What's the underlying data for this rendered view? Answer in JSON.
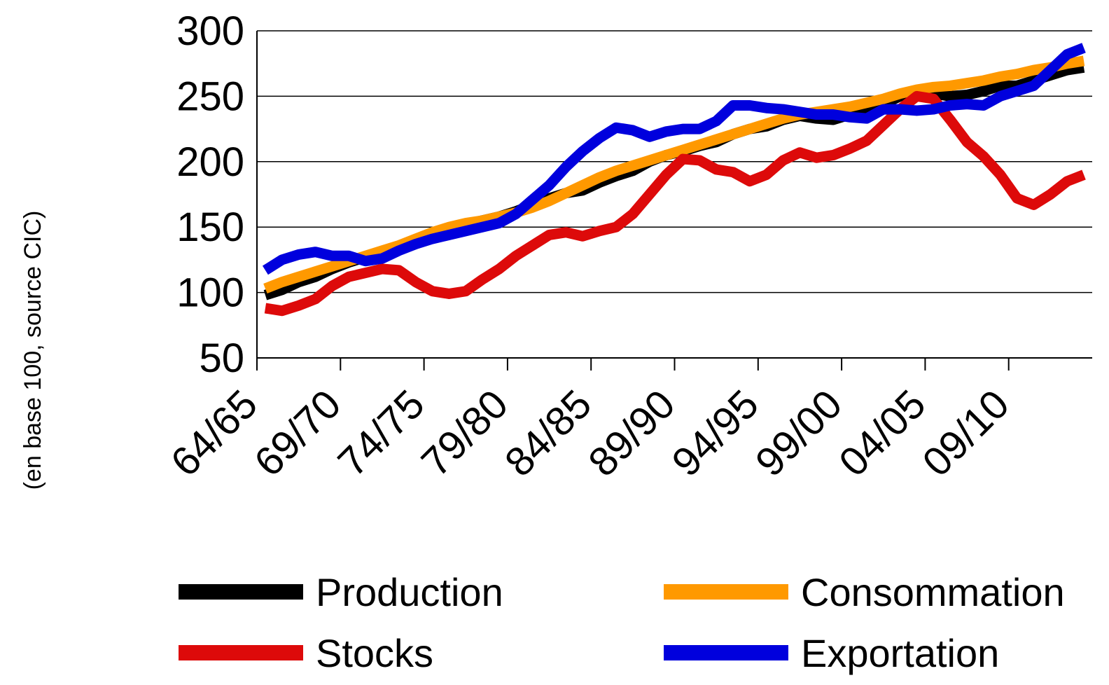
{
  "chart_data": {
    "type": "line",
    "y_label": "(en base 100, source CIC)",
    "categories": [
      "64/65",
      null,
      null,
      null,
      null,
      "69/70",
      null,
      null,
      null,
      null,
      "74/75",
      null,
      null,
      null,
      null,
      "79/80",
      null,
      null,
      null,
      null,
      "84/85",
      null,
      null,
      null,
      null,
      "89/90",
      null,
      null,
      null,
      null,
      "94/95",
      null,
      null,
      null,
      null,
      "99/00",
      null,
      null,
      null,
      null,
      "04/05",
      null,
      null,
      null,
      null,
      "09/10",
      null,
      null,
      null,
      null
    ],
    "series": [
      {
        "name": "Production",
        "color": "#000000",
        "values": [
          98,
          102,
          108,
          112,
          118,
          123,
          127,
          131,
          135,
          140,
          145,
          149,
          152,
          155,
          158,
          162,
          167,
          172,
          176,
          178,
          184,
          189,
          193,
          200,
          205,
          208,
          212,
          215,
          221,
          225,
          227,
          232,
          235,
          233,
          232,
          236,
          240,
          244,
          250,
          253,
          252,
          250,
          251,
          254,
          258,
          258,
          262,
          266,
          270,
          272
        ]
      },
      {
        "name": "Consommation",
        "color": "#ff9900",
        "values": [
          103,
          108,
          112,
          116,
          120,
          124,
          128,
          132,
          136,
          141,
          146,
          150,
          153,
          155,
          158,
          161,
          165,
          170,
          176,
          182,
          188,
          193,
          197,
          201,
          205,
          209,
          213,
          217,
          221,
          225,
          229,
          233,
          236,
          238,
          240,
          242,
          245,
          248,
          252,
          255,
          257,
          258,
          260,
          262,
          265,
          267,
          270,
          272,
          275,
          277
        ]
      },
      {
        "name": "Stocks",
        "color": "#dd0a0a",
        "values": [
          88,
          86,
          90,
          95,
          105,
          112,
          115,
          118,
          117,
          108,
          101,
          99,
          101,
          110,
          118,
          128,
          136,
          144,
          146,
          143,
          147,
          150,
          160,
          175,
          190,
          202,
          201,
          194,
          192,
          185,
          190,
          201,
          207,
          203,
          205,
          210,
          216,
          228,
          240,
          250,
          248,
          232,
          215,
          204,
          190,
          172,
          167,
          175,
          185,
          190
        ]
      },
      {
        "name": "Exportation",
        "color": "#0000dd",
        "values": [
          117,
          125,
          129,
          131,
          128,
          128,
          124,
          126,
          132,
          137,
          141,
          144,
          147,
          150,
          153,
          160,
          171,
          182,
          196,
          208,
          218,
          226,
          224,
          219,
          223,
          225,
          225,
          231,
          243,
          243,
          241,
          240,
          238,
          236,
          236,
          234,
          233,
          240,
          240,
          239,
          240,
          243,
          244,
          243,
          250,
          254,
          258,
          270,
          282,
          287
        ]
      }
    ],
    "ylim": [
      50,
      300
    ],
    "yticks": [
      50,
      100,
      150,
      200,
      250,
      300
    ],
    "grid": true
  }
}
